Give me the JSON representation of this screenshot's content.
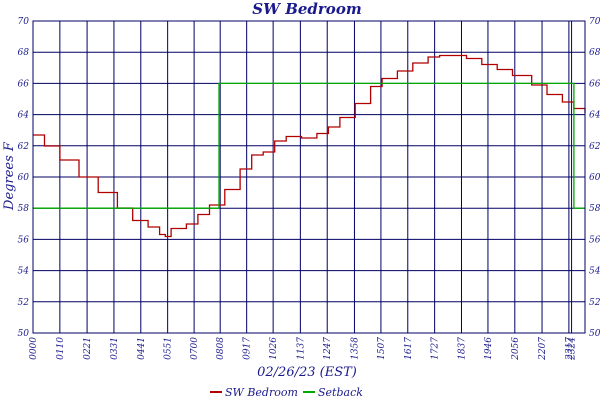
{
  "chart_data": {
    "type": "line",
    "title": "SW Bedroom",
    "xlabel": "02/26/23 (EST)",
    "ylabel": "Degrees F",
    "ylim": [
      50,
      70
    ],
    "yticks": [
      50,
      52,
      54,
      56,
      58,
      60,
      62,
      64,
      66,
      68,
      70
    ],
    "xlim": [
      0,
      1439
    ],
    "xtick_labels": [
      "0000",
      "0110",
      "0221",
      "0331",
      "0441",
      "0551",
      "0700",
      "0808",
      "0917",
      "1026",
      "1137",
      "1247",
      "1358",
      "1507",
      "1617",
      "1727",
      "1837",
      "1946",
      "2056",
      "2207",
      "2317",
      "2324"
    ],
    "xtick_minutes": [
      0,
      70,
      141,
      211,
      281,
      351,
      420,
      488,
      557,
      626,
      697,
      767,
      838,
      907,
      977,
      1047,
      1117,
      1186,
      1256,
      1327,
      1397,
      1404
    ],
    "grid": true,
    "legend_position": "bottom",
    "series": [
      {
        "name": "SW Bedroom",
        "color": "#b00000",
        "points": [
          [
            0,
            62.7
          ],
          [
            30,
            62.0
          ],
          [
            70,
            61.1
          ],
          [
            120,
            60.0
          ],
          [
            170,
            59.0
          ],
          [
            220,
            58.0
          ],
          [
            260,
            57.2
          ],
          [
            300,
            56.8
          ],
          [
            330,
            56.3
          ],
          [
            345,
            56.2
          ],
          [
            360,
            56.7
          ],
          [
            400,
            57.0
          ],
          [
            430,
            57.6
          ],
          [
            460,
            58.2
          ],
          [
            500,
            59.2
          ],
          [
            540,
            60.5
          ],
          [
            570,
            61.4
          ],
          [
            600,
            61.6
          ],
          [
            630,
            62.3
          ],
          [
            660,
            62.6
          ],
          [
            700,
            62.5
          ],
          [
            740,
            62.8
          ],
          [
            770,
            63.2
          ],
          [
            800,
            63.8
          ],
          [
            840,
            64.7
          ],
          [
            880,
            65.8
          ],
          [
            910,
            66.3
          ],
          [
            950,
            66.8
          ],
          [
            990,
            67.3
          ],
          [
            1030,
            67.7
          ],
          [
            1060,
            67.8
          ],
          [
            1100,
            67.8
          ],
          [
            1130,
            67.6
          ],
          [
            1170,
            67.2
          ],
          [
            1210,
            66.9
          ],
          [
            1250,
            66.5
          ],
          [
            1300,
            65.9
          ],
          [
            1340,
            65.3
          ],
          [
            1380,
            64.8
          ],
          [
            1410,
            64.4
          ],
          [
            1439,
            64.1
          ]
        ]
      },
      {
        "name": "Setback",
        "color": "#00aa00",
        "points": [
          [
            0,
            58
          ],
          [
            485,
            58
          ],
          [
            485,
            66
          ],
          [
            1410,
            66
          ],
          [
            1410,
            58
          ],
          [
            1439,
            58
          ]
        ]
      }
    ]
  },
  "legend": {
    "items": [
      {
        "label": "SW Bedroom",
        "color": "#b00000"
      },
      {
        "label": "Setback",
        "color": "#00aa00"
      }
    ]
  }
}
